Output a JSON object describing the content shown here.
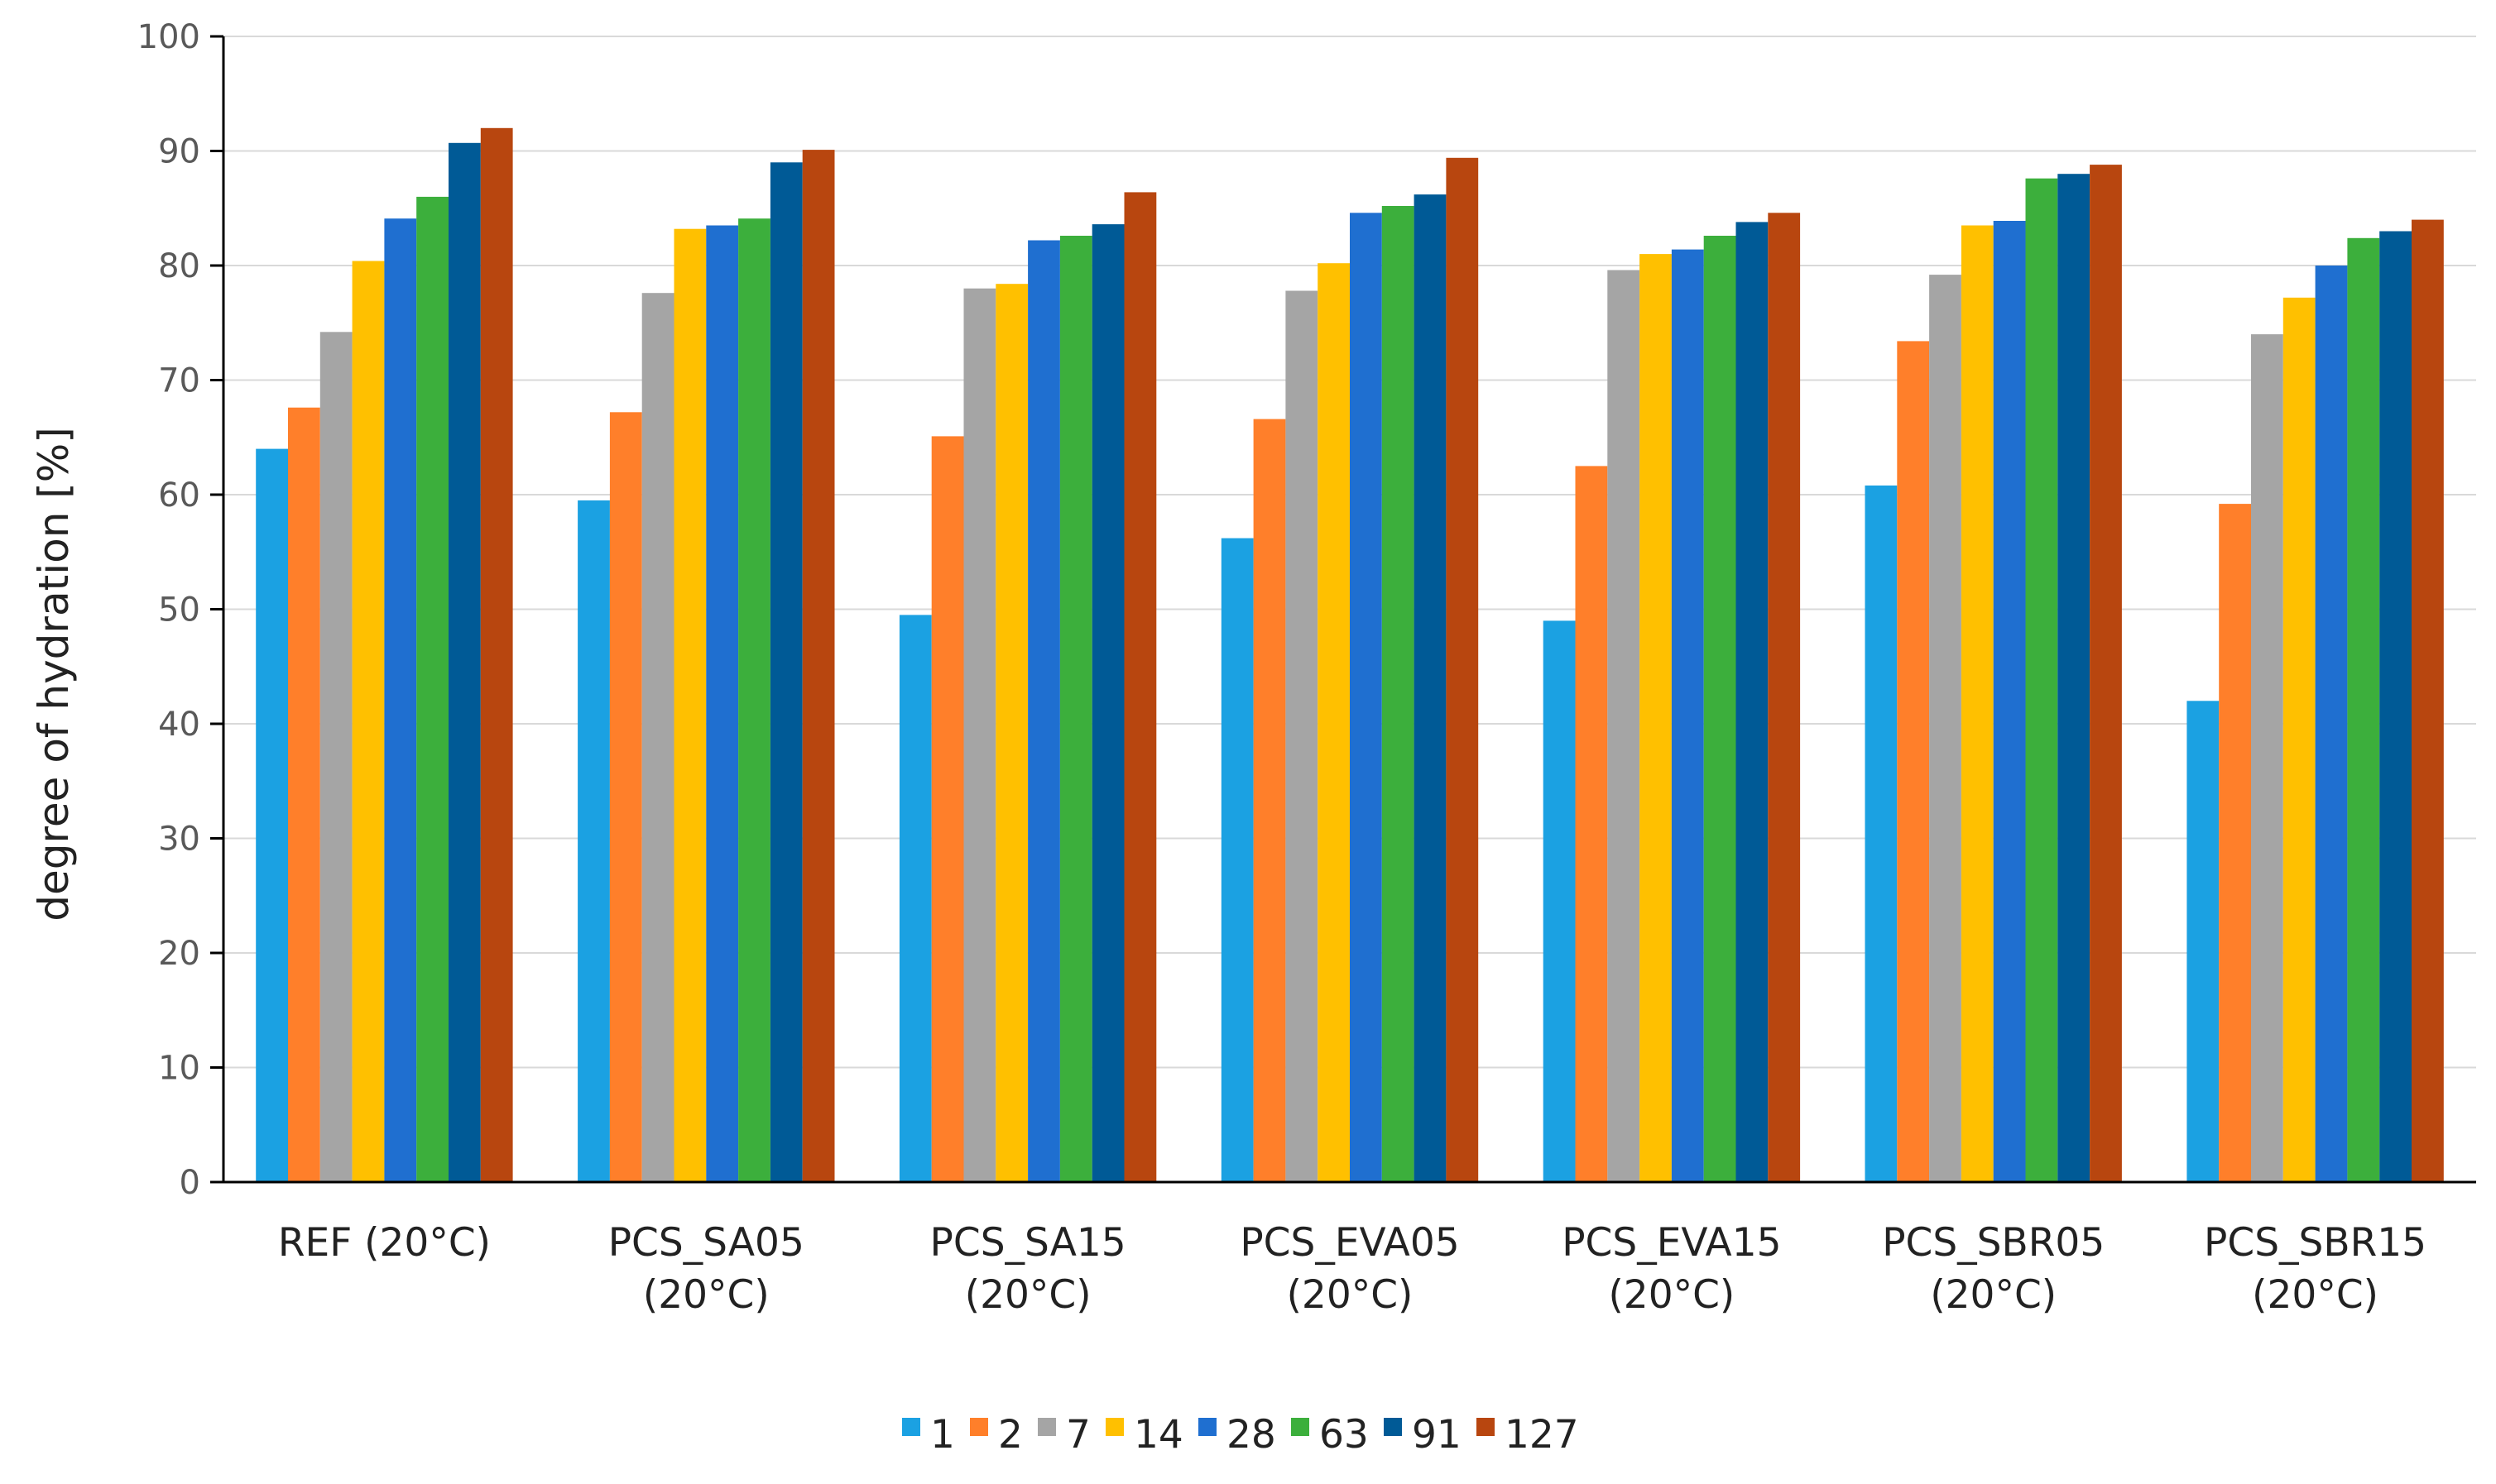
{
  "chart_data": {
    "type": "bar",
    "title": "",
    "xlabel": "",
    "ylabel": "degree of hydration [%]",
    "ylim": [
      0,
      100
    ],
    "yticks": [
      0,
      10,
      20,
      30,
      40,
      50,
      60,
      70,
      80,
      90,
      100
    ],
    "grid": true,
    "legend_position": "bottom",
    "categories": [
      [
        "REF (20°C)"
      ],
      [
        "PCS_SA05",
        "(20°C)"
      ],
      [
        "PCS_SA15",
        "(20°C)"
      ],
      [
        "PCS_EVA05",
        "(20°C)"
      ],
      [
        "PCS_EVA15",
        "(20°C)"
      ],
      [
        "PCS_SBR05",
        "(20°C)"
      ],
      [
        "PCS_SBR15",
        "(20°C)"
      ]
    ],
    "series": [
      {
        "name": "1",
        "color": "#1BA1E2",
        "values": [
          64.0,
          59.5,
          49.5,
          56.2,
          49.0,
          60.8,
          42.0
        ]
      },
      {
        "name": "2",
        "color": "#FF7F2A",
        "values": [
          67.6,
          67.2,
          65.1,
          66.6,
          62.5,
          73.4,
          59.2
        ]
      },
      {
        "name": "7",
        "color": "#A5A5A5",
        "values": [
          74.2,
          77.6,
          78.0,
          77.8,
          79.6,
          79.2,
          74.0
        ]
      },
      {
        "name": "14",
        "color": "#FFC000",
        "values": [
          80.4,
          83.2,
          78.4,
          80.2,
          81.0,
          83.5,
          77.2
        ]
      },
      {
        "name": "28",
        "color": "#1F6FD0",
        "values": [
          84.1,
          83.5,
          82.2,
          84.6,
          81.4,
          83.9,
          80.0
        ]
      },
      {
        "name": "63",
        "color": "#3CAF3C",
        "values": [
          86.0,
          84.1,
          82.6,
          85.2,
          82.6,
          87.6,
          82.4
        ]
      },
      {
        "name": "91",
        "color": "#005A96",
        "values": [
          90.7,
          89.0,
          83.6,
          86.2,
          83.8,
          88.0,
          83.0
        ]
      },
      {
        "name": "127",
        "color": "#B8460F",
        "values": [
          92.0,
          90.1,
          86.4,
          89.4,
          84.6,
          88.8,
          84.0
        ]
      }
    ]
  }
}
